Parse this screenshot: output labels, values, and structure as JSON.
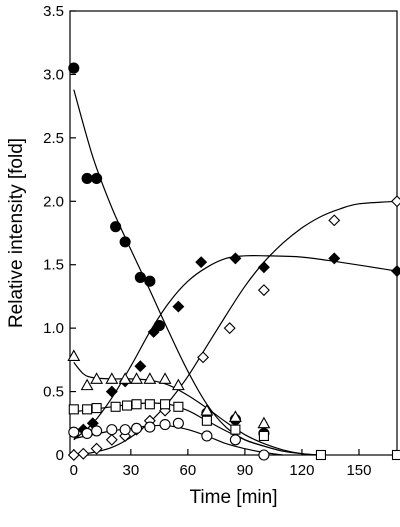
{
  "chart_data": {
    "type": "scatter",
    "xlabel": "Time [min]",
    "ylabel": "Relative intensity [fold]",
    "xlim": [
      -2,
      170
    ],
    "ylim": [
      0,
      3.5
    ],
    "xticks": [
      0,
      30,
      60,
      90,
      120,
      150
    ],
    "yticks": [
      0,
      0.5,
      1.0,
      1.5,
      2.0,
      2.5,
      3.0,
      3.5
    ],
    "xtick_labels": [
      "0",
      "30",
      "60",
      "90",
      "120",
      "150"
    ],
    "ytick_labels": [
      "0",
      "0.5",
      "1.0",
      "1.5",
      "2.0",
      "2.5",
      "3.0",
      "3.5"
    ],
    "grid": false,
    "legend": "none",
    "series": [
      {
        "marker": "filled-circle",
        "points": [
          [
            0,
            3.05
          ],
          [
            7,
            2.18
          ],
          [
            12,
            2.18
          ],
          [
            22,
            1.8
          ],
          [
            27,
            1.68
          ],
          [
            35,
            1.4
          ],
          [
            40,
            1.37
          ],
          [
            45,
            1.02
          ],
          [
            70,
            0.33
          ],
          [
            85,
            0.28
          ],
          [
            100,
            0.17
          ]
        ],
        "curve": [
          [
            0,
            2.88
          ],
          [
            10,
            2.35
          ],
          [
            20,
            1.95
          ],
          [
            30,
            1.62
          ],
          [
            40,
            1.3
          ],
          [
            50,
            0.97
          ],
          [
            60,
            0.66
          ],
          [
            70,
            0.4
          ],
          [
            80,
            0.22
          ],
          [
            90,
            0.12
          ],
          [
            100,
            0.07
          ]
        ]
      },
      {
        "marker": "filled-diamond",
        "points": [
          [
            5,
            0.2
          ],
          [
            10,
            0.25
          ],
          [
            20,
            0.5
          ],
          [
            27,
            0.58
          ],
          [
            35,
            0.7
          ],
          [
            42,
            0.97
          ],
          [
            55,
            1.17
          ],
          [
            67,
            1.52
          ],
          [
            85,
            1.55
          ],
          [
            100,
            1.48
          ],
          [
            137,
            1.55
          ],
          [
            170,
            1.45
          ]
        ],
        "curve": [
          [
            0,
            0.12
          ],
          [
            10,
            0.25
          ],
          [
            20,
            0.45
          ],
          [
            30,
            0.7
          ],
          [
            40,
            0.97
          ],
          [
            50,
            1.2
          ],
          [
            60,
            1.37
          ],
          [
            70,
            1.48
          ],
          [
            80,
            1.55
          ],
          [
            90,
            1.57
          ],
          [
            100,
            1.57
          ],
          [
            120,
            1.56
          ],
          [
            140,
            1.52
          ],
          [
            170,
            1.45
          ]
        ]
      },
      {
        "marker": "open-diamond",
        "points": [
          [
            0,
            0.0
          ],
          [
            5,
            0.01
          ],
          [
            12,
            0.05
          ],
          [
            20,
            0.12
          ],
          [
            27,
            0.15
          ],
          [
            33,
            0.2
          ],
          [
            40,
            0.27
          ],
          [
            48,
            0.35
          ],
          [
            68,
            0.77
          ],
          [
            82,
            1.0
          ],
          [
            100,
            1.3
          ],
          [
            137,
            1.85
          ],
          [
            170,
            2.0
          ]
        ],
        "curve": [
          [
            0,
            0.0
          ],
          [
            10,
            0.02
          ],
          [
            20,
            0.06
          ],
          [
            30,
            0.14
          ],
          [
            40,
            0.26
          ],
          [
            50,
            0.42
          ],
          [
            60,
            0.62
          ],
          [
            70,
            0.86
          ],
          [
            80,
            1.1
          ],
          [
            90,
            1.33
          ],
          [
            100,
            1.52
          ],
          [
            110,
            1.67
          ],
          [
            120,
            1.79
          ],
          [
            130,
            1.88
          ],
          [
            140,
            1.94
          ],
          [
            150,
            1.98
          ],
          [
            170,
            2.0
          ]
        ]
      },
      {
        "marker": "open-triangle",
        "points": [
          [
            0,
            0.78
          ],
          [
            7,
            0.55
          ],
          [
            12,
            0.6
          ],
          [
            20,
            0.6
          ],
          [
            27,
            0.6
          ],
          [
            33,
            0.6
          ],
          [
            40,
            0.6
          ],
          [
            48,
            0.6
          ],
          [
            55,
            0.55
          ],
          [
            70,
            0.35
          ],
          [
            85,
            0.3
          ],
          [
            100,
            0.25
          ]
        ],
        "curve": [
          [
            0,
            0.73
          ],
          [
            5,
            0.64
          ],
          [
            10,
            0.61
          ],
          [
            20,
            0.6
          ],
          [
            30,
            0.6
          ],
          [
            40,
            0.59
          ],
          [
            50,
            0.55
          ],
          [
            60,
            0.47
          ],
          [
            70,
            0.37
          ],
          [
            80,
            0.26
          ],
          [
            90,
            0.16
          ],
          [
            100,
            0.09
          ],
          [
            110,
            0.04
          ],
          [
            120,
            0.01
          ],
          [
            128,
            0.0
          ]
        ]
      },
      {
        "marker": "open-square",
        "points": [
          [
            0,
            0.36
          ],
          [
            7,
            0.36
          ],
          [
            12,
            0.37
          ],
          [
            22,
            0.38
          ],
          [
            28,
            0.39
          ],
          [
            33,
            0.4
          ],
          [
            40,
            0.4
          ],
          [
            48,
            0.4
          ],
          [
            55,
            0.38
          ],
          [
            70,
            0.27
          ],
          [
            85,
            0.2
          ],
          [
            100,
            0.15
          ],
          [
            130,
            0.0
          ],
          [
            170,
            0.0
          ]
        ],
        "curve": [
          [
            0,
            0.34
          ],
          [
            10,
            0.36
          ],
          [
            20,
            0.38
          ],
          [
            30,
            0.4
          ],
          [
            40,
            0.41
          ],
          [
            50,
            0.4
          ],
          [
            60,
            0.35
          ],
          [
            70,
            0.27
          ],
          [
            80,
            0.19
          ],
          [
            90,
            0.12
          ],
          [
            100,
            0.07
          ],
          [
            110,
            0.03
          ],
          [
            120,
            0.01
          ],
          [
            130,
            0.0
          ]
        ]
      },
      {
        "marker": "open-circle",
        "points": [
          [
            0,
            0.18
          ],
          [
            7,
            0.17
          ],
          [
            12,
            0.19
          ],
          [
            20,
            0.2
          ],
          [
            27,
            0.2
          ],
          [
            33,
            0.21
          ],
          [
            40,
            0.22
          ],
          [
            48,
            0.24
          ],
          [
            55,
            0.25
          ],
          [
            70,
            0.15
          ],
          [
            85,
            0.12
          ],
          [
            100,
            0.0
          ]
        ],
        "curve": [
          [
            0,
            0.13
          ],
          [
            10,
            0.16
          ],
          [
            20,
            0.19
          ],
          [
            30,
            0.21
          ],
          [
            40,
            0.23
          ],
          [
            50,
            0.23
          ],
          [
            60,
            0.2
          ],
          [
            70,
            0.15
          ],
          [
            80,
            0.09
          ],
          [
            90,
            0.05
          ],
          [
            100,
            0.02
          ],
          [
            110,
            0.0
          ]
        ]
      }
    ]
  }
}
